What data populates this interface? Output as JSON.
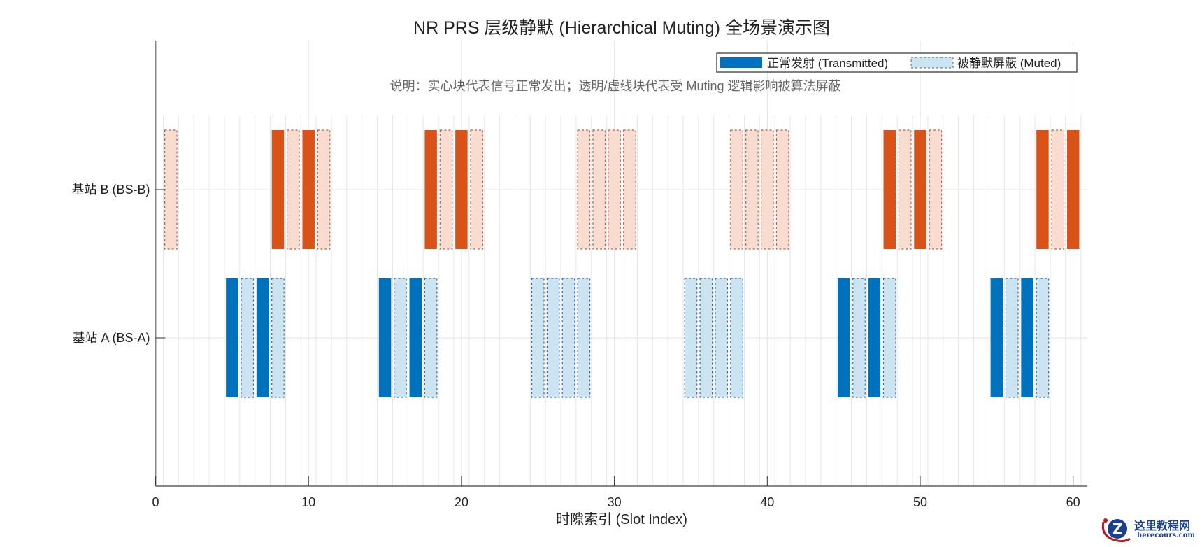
{
  "chart_data": {
    "type": "bar",
    "subtype": "timeline-gantt",
    "title": "NR PRS 层级静默 (Hierarchical Muting) 全场景演示图",
    "note": "说明：实心块代表信号正常发出；透明/虚线块代表受 Muting 逻辑影响被算法屏蔽",
    "xlabel": "时隙索引 (Slot Index)",
    "ylabel": "",
    "xlim": [
      0,
      61
    ],
    "xticks": [
      0,
      10,
      20,
      30,
      40,
      50,
      60
    ],
    "categories": [
      "基站 A (BS-A)",
      "基站 B (BS-B)"
    ],
    "legend": {
      "position": "upper right",
      "entries": [
        {
          "label": "正常发射 (Transmitted)",
          "style": "solid"
        },
        {
          "label": "被静默屏蔽 (Muted)",
          "style": "dashed-transparent"
        }
      ]
    },
    "grid": true,
    "series": [
      {
        "name": "基站 A (BS-A)",
        "color": "#0072bd",
        "muted_color": "#cce3f2",
        "transmitted": [
          5,
          7,
          15,
          17,
          45,
          47,
          55,
          57
        ],
        "muted": [
          6,
          8,
          16,
          18,
          25,
          26,
          27,
          28,
          35,
          36,
          37,
          38,
          46,
          48,
          56,
          58
        ]
      },
      {
        "name": "基站 B (BS-B)",
        "color": "#d95319",
        "muted_color": "#f7dccf",
        "transmitted": [
          8,
          10,
          18,
          20,
          48,
          50,
          58,
          60
        ],
        "muted": [
          1,
          9,
          11,
          19,
          21,
          28,
          29,
          30,
          31,
          38,
          39,
          40,
          41,
          49,
          51,
          59
        ]
      }
    ]
  },
  "watermark": {
    "title": "这里教程网",
    "url": "herecours.com"
  }
}
